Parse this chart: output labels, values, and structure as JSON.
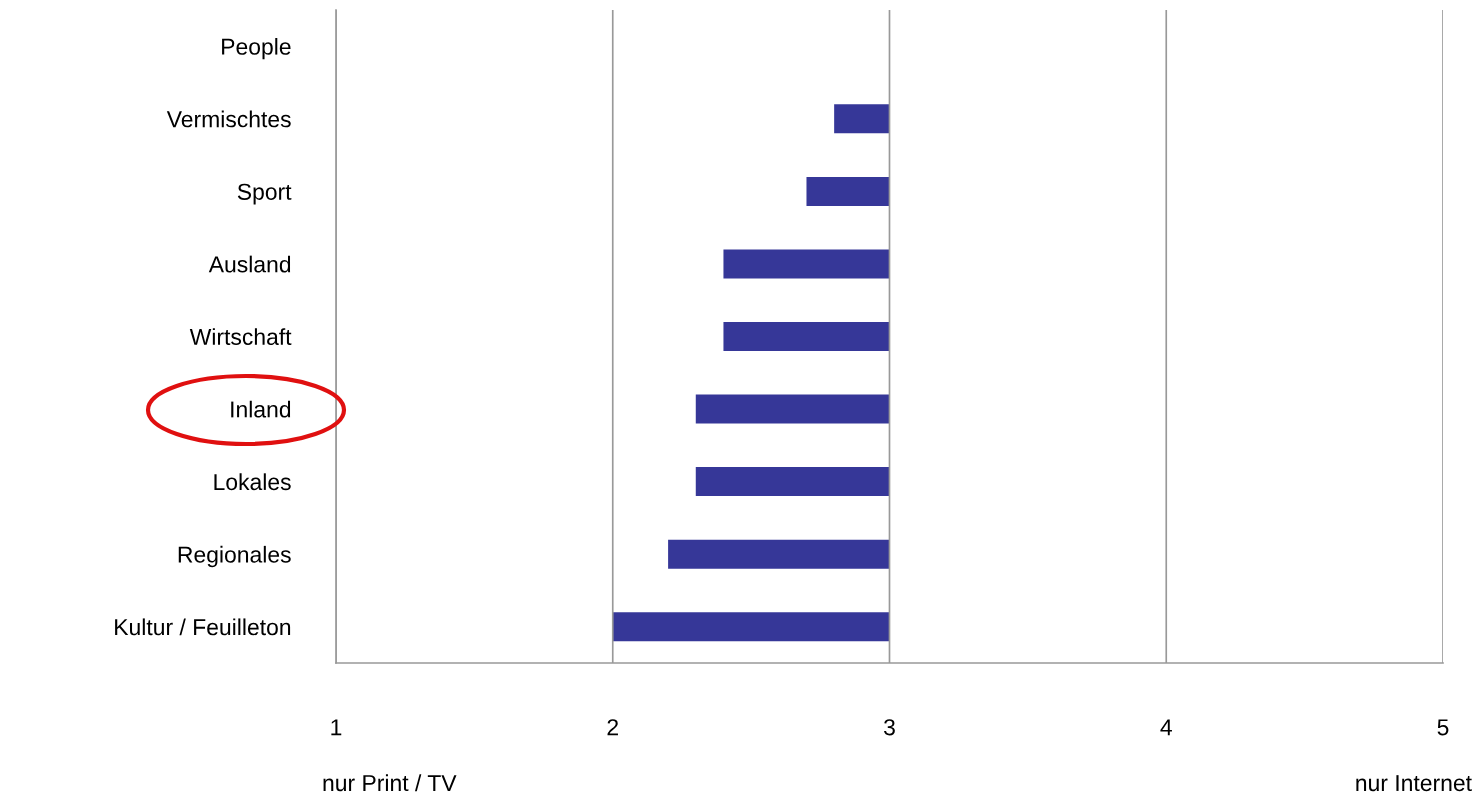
{
  "chart_data": {
    "type": "bar",
    "orientation": "horizontal",
    "categories": [
      "People",
      "Vermischtes",
      "Sport",
      "Ausland",
      "Wirtschaft",
      "Inland",
      "Lokales",
      "Regionales",
      "Kultur / Feuilleton"
    ],
    "base": [
      null,
      2.8,
      2.7,
      2.4,
      2.4,
      2.3,
      2.3,
      2.2,
      2.0
    ],
    "values": [
      null,
      0.2,
      0.3,
      0.6,
      0.6,
      0.7,
      0.7,
      0.8,
      1.0
    ],
    "color": "#363798",
    "xlim": [
      1,
      5
    ],
    "xticks": [
      1,
      2,
      3,
      4,
      5
    ],
    "grid": "x",
    "annotations": [
      "nur Print / TV",
      "nur Internet"
    ]
  }
}
